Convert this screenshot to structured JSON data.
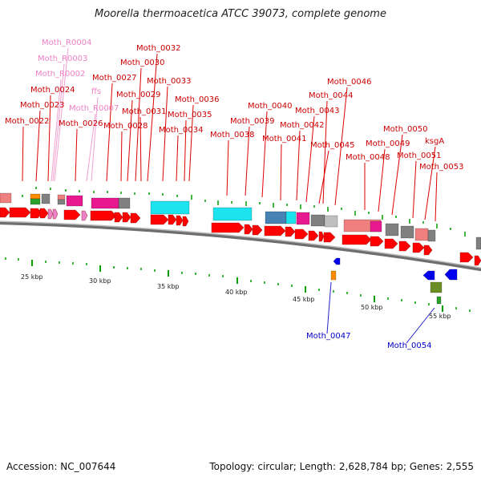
{
  "title": "Moorella thermoacetica ATCC 39073, complete genome",
  "footer": {
    "accession": "Accession: NC_007644",
    "summary": "Topology: circular; Length: 2,628,784 bp; Genes: 2,555"
  },
  "colors": {
    "gene_red": "#ff0000",
    "gene_pink": "#f08080",
    "magenta": "#e8198e",
    "cyan": "#1de3ef",
    "steel_blue": "#4682b4",
    "gray": "#808080",
    "light_gray": "#c0c0c0",
    "orange": "#ff8c00",
    "green": "#2ca02c",
    "olive": "#6b8e23",
    "blue": "#0000ee",
    "tick_green": "#00a000",
    "label_red": "#cc0000",
    "label_pink": "#ee82c8",
    "label_blue": "#0000cc"
  },
  "scale_labels": [
    "25 kbp",
    "30 kbp",
    "35 kbp",
    "40 kbp",
    "45 kbp",
    "50 kbp",
    "55 kbp"
  ],
  "gene_labels": [
    {
      "text": "Moth_R0004",
      "tone": "pink"
    },
    {
      "text": "Moth_R0003",
      "tone": "pink"
    },
    {
      "text": "Moth_R0002",
      "tone": "pink"
    },
    {
      "text": "ffs",
      "tone": "pink"
    },
    {
      "text": "Moth_R0007",
      "tone": "pink"
    },
    {
      "text": "Moth_0022",
      "tone": "red"
    },
    {
      "text": "Moth_0023",
      "tone": "red"
    },
    {
      "text": "Moth_0024",
      "tone": "red"
    },
    {
      "text": "Moth_0026",
      "tone": "red"
    },
    {
      "text": "Moth_0027",
      "tone": "red"
    },
    {
      "text": "Moth_0028",
      "tone": "red"
    },
    {
      "text": "Moth_0029",
      "tone": "red"
    },
    {
      "text": "Moth_0030",
      "tone": "red"
    },
    {
      "text": "Moth_0031",
      "tone": "red"
    },
    {
      "text": "Moth_0032",
      "tone": "red"
    },
    {
      "text": "Moth_0033",
      "tone": "red"
    },
    {
      "text": "Moth_0034",
      "tone": "red"
    },
    {
      "text": "Moth_0035",
      "tone": "red"
    },
    {
      "text": "Moth_0036",
      "tone": "red"
    },
    {
      "text": "Moth_0038",
      "tone": "red"
    },
    {
      "text": "Moth_0039",
      "tone": "red"
    },
    {
      "text": "Moth_0040",
      "tone": "red"
    },
    {
      "text": "Moth_0041",
      "tone": "red"
    },
    {
      "text": "Moth_0042",
      "tone": "red"
    },
    {
      "text": "Moth_0043",
      "tone": "red"
    },
    {
      "text": "Moth_0044",
      "tone": "red"
    },
    {
      "text": "Moth_0045",
      "tone": "red"
    },
    {
      "text": "Moth_0046",
      "tone": "red"
    },
    {
      "text": "Moth_0048",
      "tone": "red"
    },
    {
      "text": "Moth_0049",
      "tone": "red"
    },
    {
      "text": "Moth_0050",
      "tone": "red"
    },
    {
      "text": "Moth_0051",
      "tone": "red"
    },
    {
      "text": "Moth_0053",
      "tone": "red"
    },
    {
      "text": "ksgA",
      "tone": "red"
    },
    {
      "text": "Moth_0047",
      "tone": "blue"
    },
    {
      "text": "Moth_0054",
      "tone": "blue"
    }
  ]
}
